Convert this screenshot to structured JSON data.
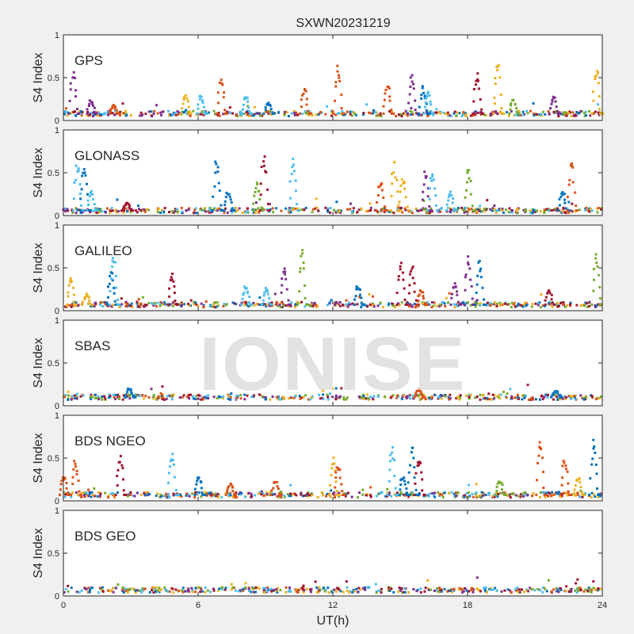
{
  "chart_data": {
    "type": "scatter",
    "title": "SXWN20231219",
    "xlabel": "UT(h)",
    "xlim": [
      0,
      24
    ],
    "x_ticks": [
      "0",
      "6",
      "12",
      "18",
      "24"
    ],
    "ylim": [
      0,
      1
    ],
    "y_ticks": [
      "0",
      "0.5",
      "1"
    ],
    "watermark": "IONISE",
    "series_colors": [
      "#0072bd",
      "#d95319",
      "#edb120",
      "#7e2f8e",
      "#77ac30",
      "#4dbeee",
      "#a2142f"
    ],
    "panels": [
      {
        "label": "GPS",
        "ylabel": "S4 Index",
        "baseline": 0.08,
        "spikes": [
          {
            "x": 0.6,
            "y": 0.6,
            "c": 3
          },
          {
            "x": 1.4,
            "y": 0.25,
            "c": 3
          },
          {
            "x": 2.4,
            "y": 0.18,
            "c": 1
          },
          {
            "x": 5.6,
            "y": 0.3,
            "c": 2
          },
          {
            "x": 6.3,
            "y": 0.3,
            "c": 5
          },
          {
            "x": 7.2,
            "y": 0.55,
            "c": 1
          },
          {
            "x": 8.3,
            "y": 0.3,
            "c": 5
          },
          {
            "x": 9.3,
            "y": 0.22,
            "c": 0
          },
          {
            "x": 10.9,
            "y": 0.4,
            "c": 1
          },
          {
            "x": 12.4,
            "y": 0.68,
            "c": 1
          },
          {
            "x": 14.6,
            "y": 0.45,
            "c": 1
          },
          {
            "x": 15.7,
            "y": 0.55,
            "c": 3
          },
          {
            "x": 16.2,
            "y": 0.4,
            "c": 0
          },
          {
            "x": 16.4,
            "y": 0.35,
            "c": 5
          },
          {
            "x": 18.6,
            "y": 0.6,
            "c": 6
          },
          {
            "x": 19.5,
            "y": 0.75,
            "c": 2
          },
          {
            "x": 20.2,
            "y": 0.25,
            "c": 4
          },
          {
            "x": 22.0,
            "y": 0.3,
            "c": 3
          },
          {
            "x": 23.9,
            "y": 0.65,
            "c": 2
          }
        ]
      },
      {
        "label": "GLONASS",
        "ylabel": "S4 Index",
        "baseline": 0.06,
        "spikes": [
          {
            "x": 0.8,
            "y": 0.65,
            "c": 5
          },
          {
            "x": 1.1,
            "y": 0.6,
            "c": 0
          },
          {
            "x": 1.4,
            "y": 0.3,
            "c": 5
          },
          {
            "x": 3.0,
            "y": 0.15,
            "c": 6
          },
          {
            "x": 7.0,
            "y": 0.68,
            "c": 0
          },
          {
            "x": 7.5,
            "y": 0.3,
            "c": 0
          },
          {
            "x": 8.8,
            "y": 0.4,
            "c": 4
          },
          {
            "x": 9.1,
            "y": 0.75,
            "c": 6
          },
          {
            "x": 10.4,
            "y": 0.68,
            "c": 5
          },
          {
            "x": 14.3,
            "y": 0.45,
            "c": 1
          },
          {
            "x": 14.9,
            "y": 0.65,
            "c": 2
          },
          {
            "x": 15.3,
            "y": 0.45,
            "c": 2
          },
          {
            "x": 16.3,
            "y": 0.55,
            "c": 3
          },
          {
            "x": 16.6,
            "y": 0.55,
            "c": 5
          },
          {
            "x": 17.4,
            "y": 0.3,
            "c": 5
          },
          {
            "x": 18.2,
            "y": 0.58,
            "c": 4
          },
          {
            "x": 22.4,
            "y": 0.3,
            "c": 0
          },
          {
            "x": 22.8,
            "y": 0.65,
            "c": 1
          }
        ]
      },
      {
        "label": "GALILEO",
        "ylabel": "S4 Index",
        "baseline": 0.07,
        "spikes": [
          {
            "x": 0.5,
            "y": 0.4,
            "c": 2
          },
          {
            "x": 1.2,
            "y": 0.2,
            "c": 2
          },
          {
            "x": 2.3,
            "y": 0.45,
            "c": 0
          },
          {
            "x": 2.4,
            "y": 0.67,
            "c": 5
          },
          {
            "x": 5.0,
            "y": 0.45,
            "c": 6
          },
          {
            "x": 8.3,
            "y": 0.3,
            "c": 5
          },
          {
            "x": 9.2,
            "y": 0.28,
            "c": 5
          },
          {
            "x": 10.0,
            "y": 0.55,
            "c": 3
          },
          {
            "x": 10.8,
            "y": 0.75,
            "c": 4
          },
          {
            "x": 13.3,
            "y": 0.3,
            "c": 0
          },
          {
            "x": 15.2,
            "y": 0.6,
            "c": 6
          },
          {
            "x": 15.7,
            "y": 0.55,
            "c": 6
          },
          {
            "x": 16.1,
            "y": 0.25,
            "c": 1
          },
          {
            "x": 17.6,
            "y": 0.35,
            "c": 3
          },
          {
            "x": 18.2,
            "y": 0.65,
            "c": 3
          },
          {
            "x": 18.7,
            "y": 0.6,
            "c": 0
          },
          {
            "x": 21.8,
            "y": 0.25,
            "c": 6
          },
          {
            "x": 23.9,
            "y": 0.7,
            "c": 4
          }
        ]
      },
      {
        "label": "SBAS",
        "ylabel": "S4 Index",
        "baseline": 0.1,
        "spikes": [
          {
            "x": 3.1,
            "y": 0.22,
            "c": 0
          },
          {
            "x": 16.0,
            "y": 0.2,
            "c": 1
          },
          {
            "x": 22.1,
            "y": 0.18,
            "c": 0
          }
        ]
      },
      {
        "label": "BDS NGEO",
        "ylabel": "S4 Index",
        "baseline": 0.07,
        "spikes": [
          {
            "x": 0.2,
            "y": 0.3,
            "c": 1
          },
          {
            "x": 0.7,
            "y": 0.5,
            "c": 1
          },
          {
            "x": 2.7,
            "y": 0.55,
            "c": 6
          },
          {
            "x": 5.0,
            "y": 0.62,
            "c": 5
          },
          {
            "x": 6.2,
            "y": 0.3,
            "c": 0
          },
          {
            "x": 7.6,
            "y": 0.2,
            "c": 1
          },
          {
            "x": 9.6,
            "y": 0.25,
            "c": 1
          },
          {
            "x": 12.2,
            "y": 0.55,
            "c": 2
          },
          {
            "x": 12.4,
            "y": 0.45,
            "c": 1
          },
          {
            "x": 14.8,
            "y": 0.72,
            "c": 5
          },
          {
            "x": 15.3,
            "y": 0.3,
            "c": 0
          },
          {
            "x": 15.7,
            "y": 0.65,
            "c": 0
          },
          {
            "x": 16.0,
            "y": 0.52,
            "c": 6
          },
          {
            "x": 19.6,
            "y": 0.25,
            "c": 4
          },
          {
            "x": 21.4,
            "y": 0.77,
            "c": 1
          },
          {
            "x": 22.5,
            "y": 0.5,
            "c": 1
          },
          {
            "x": 23.1,
            "y": 0.3,
            "c": 2
          },
          {
            "x": 23.8,
            "y": 0.77,
            "c": 0
          }
        ]
      },
      {
        "label": "BDS GEO",
        "ylabel": "S4 Index",
        "baseline": 0.07,
        "spikes": []
      }
    ]
  }
}
